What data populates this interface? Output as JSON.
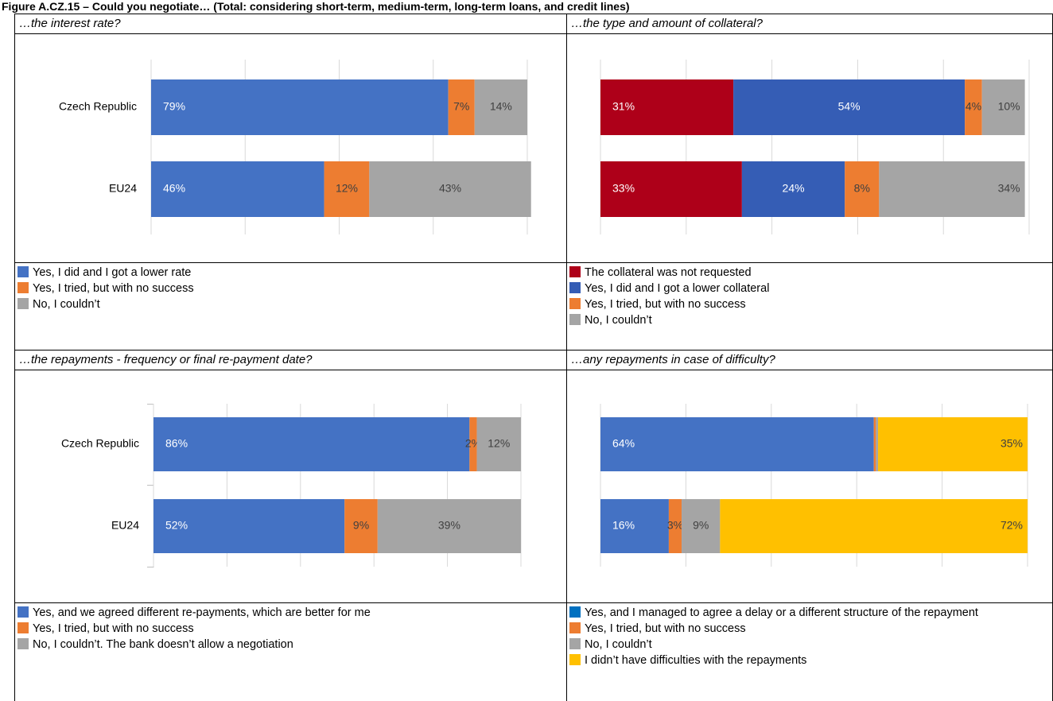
{
  "title": "Figure A.CZ.15 – Could you negotiate… (Total: considering short-term, medium-term, long-term loans, and credit lines)",
  "chart_data": [
    {
      "type": "bar",
      "orientation": "horizontal",
      "stacked": true,
      "title": "…the interest rate?",
      "categories": [
        "Czech Republic",
        "EU24"
      ],
      "series": [
        {
          "name": "Yes, I did and I got a lower rate",
          "color": "#4472c4",
          "values": [
            79,
            46
          ],
          "value_labels": [
            "79%",
            "46%"
          ]
        },
        {
          "name": "Yes, I tried, but with no success",
          "color": "#ed7d31",
          "values": [
            7,
            12
          ],
          "value_labels": [
            "7%",
            "12%"
          ]
        },
        {
          "name": "No, I couldn’t",
          "color": "#a5a5a5",
          "values": [
            14,
            43
          ],
          "value_labels": [
            "14%",
            "43%"
          ]
        }
      ],
      "xlim": [
        0,
        100
      ],
      "xticks": [
        0,
        25,
        50,
        75,
        100
      ],
      "grid": true
    },
    {
      "type": "bar",
      "orientation": "horizontal",
      "stacked": true,
      "title": "…the type and amount of collateral?",
      "categories": [
        null,
        null
      ],
      "series": [
        {
          "name": "The collateral was not requested",
          "color": "#ae0019",
          "values": [
            31,
            33
          ],
          "value_labels": [
            "31%",
            "33%"
          ]
        },
        {
          "name": "Yes, I did and I got a lower collateral",
          "color": "#355db5",
          "values": [
            54,
            24
          ],
          "value_labels": [
            "54%",
            "24%"
          ]
        },
        {
          "name": "Yes, I tried, but with no success",
          "color": "#ed7d31",
          "values": [
            4,
            8
          ],
          "value_labels": [
            "4%",
            "8%"
          ]
        },
        {
          "name": "No, I couldn’t",
          "color": "#a5a5a5",
          "values": [
            10,
            34
          ],
          "value_labels": [
            "10%",
            "34%"
          ]
        }
      ],
      "xlim": [
        0,
        100
      ],
      "xticks": [
        0,
        20,
        40,
        60,
        80,
        100
      ],
      "grid": true
    },
    {
      "type": "bar",
      "orientation": "horizontal",
      "stacked": true,
      "title": "…the repayments - frequency or final re-payment date?",
      "categories": [
        "Czech Republic",
        "EU24"
      ],
      "series": [
        {
          "name": "Yes, and we agreed different re-payments, which are better for me",
          "color": "#4472c4",
          "values": [
            86,
            52
          ],
          "value_labels": [
            "86%",
            "52%"
          ]
        },
        {
          "name": "Yes, I tried, but with no success",
          "color": "#ed7d31",
          "values": [
            2,
            9
          ],
          "value_labels": [
            "2%",
            "9%"
          ]
        },
        {
          "name": "No, I couldn’t. The bank doesn’t allow a negotiation",
          "color": "#a5a5a5",
          "values": [
            12,
            39
          ],
          "value_labels": [
            "12%",
            "39%"
          ]
        }
      ],
      "xlim": [
        0,
        100
      ],
      "xticks": [
        0,
        20,
        40,
        60,
        80,
        100
      ],
      "grid": true
    },
    {
      "type": "bar",
      "orientation": "horizontal",
      "stacked": true,
      "title": "…any repayments in case of difficulty?",
      "categories": [
        null,
        null
      ],
      "series": [
        {
          "name": "Yes, and I managed to agree a delay or a different structure of the repayment",
          "color": "#0070c0",
          "bar_color": "#4472c4",
          "values": [
            64,
            16
          ],
          "value_labels": [
            "64%",
            "16%"
          ]
        },
        {
          "name": "Yes, I tried, but with no success",
          "color": "#ed7d31",
          "values": [
            0.5,
            3
          ],
          "value_labels": [
            null,
            "3%"
          ]
        },
        {
          "name": "No, I couldn’t",
          "color": "#a5a5a5",
          "values": [
            0.5,
            9
          ],
          "value_labels": [
            null,
            "9%"
          ]
        },
        {
          "name": "I didn’t have difficulties with the repayments",
          "color": "#ffc000",
          "values": [
            35,
            72
          ],
          "value_labels": [
            "35%",
            "72%"
          ]
        }
      ],
      "xlim": [
        0,
        100
      ],
      "xticks": [
        0,
        20,
        40,
        60,
        80,
        100
      ],
      "grid": true
    }
  ]
}
